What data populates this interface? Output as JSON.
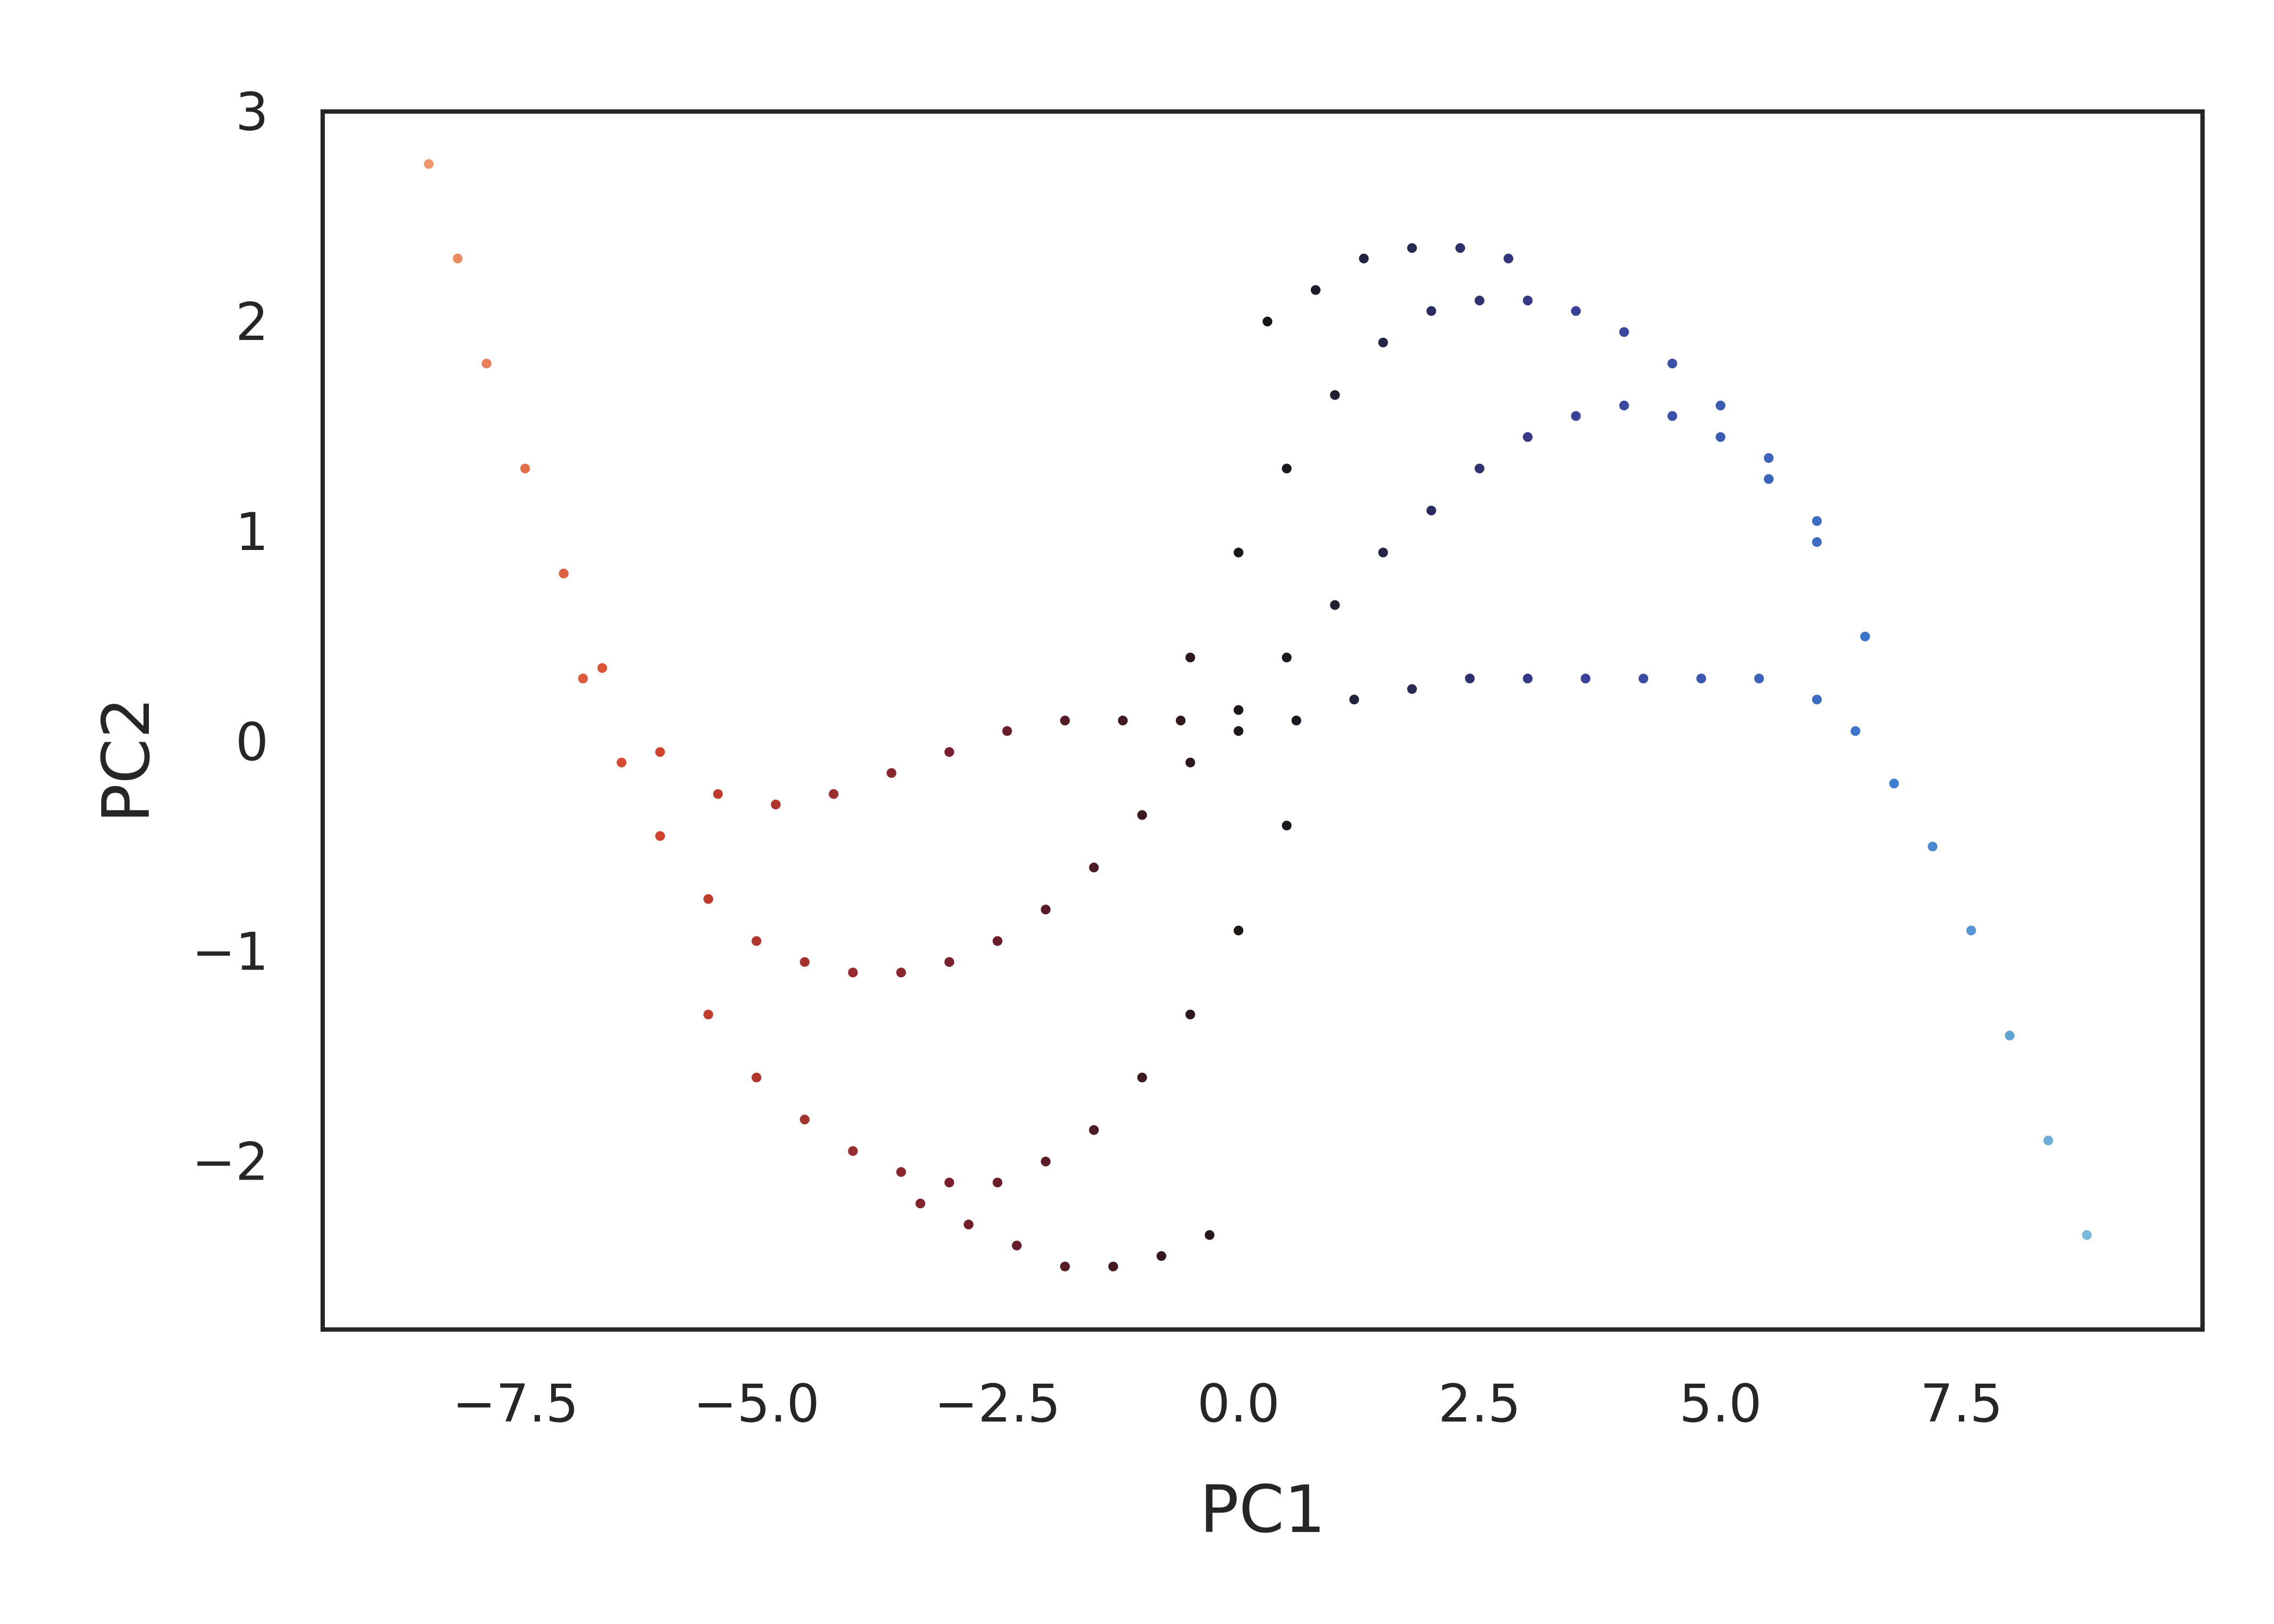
{
  "chart_data": {
    "type": "scatter",
    "title": "",
    "xlabel": "PC1",
    "ylabel": "PC2",
    "xlim": [
      -9.5,
      10.0
    ],
    "ylim": [
      -2.8,
      3.0
    ],
    "xticks": [
      -7.5,
      -5.0,
      -2.5,
      0.0,
      2.5,
      5.0,
      7.5
    ],
    "xtick_labels": [
      "−7.5",
      "−5.0",
      "−2.5",
      "0.0",
      "2.5",
      "5.0",
      "7.5"
    ],
    "yticks": [
      -2,
      -1,
      0,
      1,
      2,
      3
    ],
    "ytick_labels": [
      "−2",
      "−1",
      "0",
      "1",
      "2",
      "3"
    ],
    "grid": false,
    "legend": "none",
    "colormap": {
      "name": "icefire",
      "low": "#9fdde0",
      "mid_low": "#3c7bd0",
      "mid_low2": "#3b3f99",
      "middle": "#161616",
      "mid_high": "#7a1f2e",
      "mid_high2": "#d7452c",
      "high": "#fbc08a",
      "value": "PC1"
    },
    "point_color_default": "#1a1a1a",
    "series": [
      {
        "x": [
          -8.4,
          -8.1,
          -7.8,
          -7.4,
          -7.0,
          -6.6,
          -6.0,
          -5.4,
          -4.8,
          -4.2,
          -3.6,
          -3.0,
          -2.4,
          -1.8,
          -1.2,
          -0.6,
          0.0,
          0.6,
          1.2,
          1.8,
          2.4,
          3.0,
          3.6,
          4.2,
          4.8,
          5.4,
          6.0,
          6.4,
          6.8,
          7.2,
          7.6,
          8.0,
          8.4,
          8.8
        ],
        "y": [
          2.75,
          2.3,
          1.8,
          1.3,
          0.8,
          0.35,
          -0.05,
          -0.25,
          -0.3,
          -0.25,
          -0.15,
          -0.05,
          0.05,
          0.1,
          0.1,
          0.1,
          0.05,
          0.1,
          0.2,
          0.25,
          0.3,
          0.3,
          0.3,
          0.3,
          0.3,
          0.3,
          0.2,
          0.05,
          -0.2,
          -0.5,
          -0.9,
          -1.4,
          -1.9,
          -2.35
        ]
      },
      {
        "x": [
          -6.8,
          -6.4,
          -6.0,
          -5.5,
          -5.0,
          -4.5,
          -4.0,
          -3.5,
          -3.0,
          -2.5,
          -2.0,
          -1.5,
          -1.0,
          -0.5,
          0.0,
          0.5,
          1.0,
          1.5,
          2.0,
          2.5,
          3.0,
          3.5,
          4.0,
          4.5,
          5.0,
          5.5,
          6.0,
          6.5
        ],
        "y": [
          0.3,
          -0.1,
          -0.45,
          -0.75,
          -0.95,
          -1.05,
          -1.1,
          -1.1,
          -1.05,
          -0.95,
          -0.8,
          -0.6,
          -0.35,
          -0.1,
          0.15,
          0.4,
          0.65,
          0.9,
          1.1,
          1.3,
          1.45,
          1.55,
          1.6,
          1.55,
          1.45,
          1.25,
          0.95,
          0.5
        ]
      },
      {
        "x": [
          -5.5,
          -5.0,
          -4.5,
          -4.0,
          -3.5,
          -3.0,
          -2.5,
          -2.0,
          -1.5,
          -1.0,
          -0.5,
          0.0,
          0.5
        ],
        "y": [
          -1.3,
          -1.6,
          -1.8,
          -1.95,
          -2.05,
          -2.1,
          -2.1,
          -2.0,
          -1.85,
          -1.6,
          -1.3,
          -0.9,
          -0.4
        ]
      },
      {
        "x": [
          -0.5,
          0.0,
          0.5,
          1.0,
          1.5,
          2.0,
          2.5,
          3.0,
          3.5,
          4.0,
          4.5,
          5.0,
          5.5,
          6.0
        ],
        "y": [
          0.4,
          0.9,
          1.3,
          1.65,
          1.9,
          2.05,
          2.1,
          2.1,
          2.05,
          1.95,
          1.8,
          1.6,
          1.35,
          1.05
        ]
      },
      {
        "x": [
          -3.3,
          -2.8,
          -2.3,
          -1.8,
          -1.3,
          -0.8,
          -0.3,
          0.3,
          0.8,
          1.3,
          1.8,
          2.3,
          2.8
        ],
        "y": [
          -2.2,
          -2.3,
          -2.4,
          -2.5,
          -2.5,
          -2.45,
          -2.35,
          2.0,
          2.15,
          2.3,
          2.35,
          2.35,
          2.3
        ]
      }
    ]
  }
}
